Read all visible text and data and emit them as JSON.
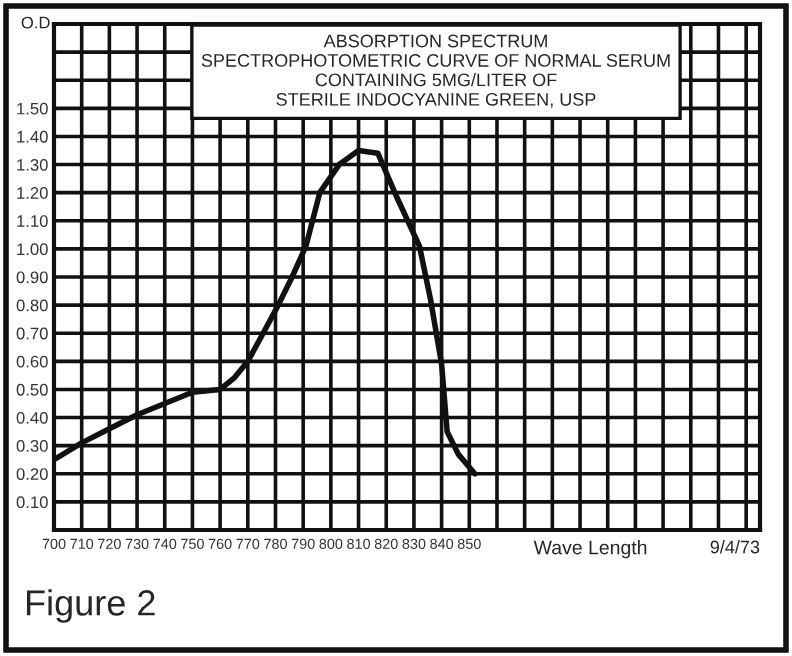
{
  "chart_data": {
    "type": "line",
    "title": "ABSORPTION SPECTRUM\nSPECTROPHOTOMETRIC CURVE OF NORMAL SERUM\nCONTAINING 5MG/LITER OF\nSTERILE INDOCYANINE GREEN, USP",
    "xlabel": "Wave Length",
    "ylabel": "O.D",
    "annotations": [
      "9/4/73",
      "Figure 2"
    ],
    "series": [
      {
        "color": "#111111",
        "x": [
          700,
          710,
          720,
          730,
          740,
          750,
          760,
          765,
          770,
          775,
          781,
          786,
          791,
          796,
          803,
          810,
          817,
          824,
          832,
          836,
          840,
          842,
          846,
          852
        ],
        "values": [
          0.25,
          0.31,
          0.36,
          0.41,
          0.45,
          0.49,
          0.5,
          0.54,
          0.6,
          0.69,
          0.8,
          0.9,
          1.01,
          1.2,
          1.3,
          1.35,
          1.34,
          1.18,
          1.01,
          0.82,
          0.59,
          0.35,
          0.27,
          0.2
        ]
      }
    ],
    "xlim": [
      700,
      955
    ],
    "ylim": [
      0,
      1.8
    ],
    "xticks": [
      700,
      710,
      720,
      730,
      740,
      750,
      760,
      770,
      780,
      790,
      800,
      810,
      820,
      830,
      840,
      850,
      {
        "value": 860,
        "label": null
      },
      {
        "value": 870,
        "label": null
      },
      {
        "value": 880,
        "label": null
      },
      {
        "value": 890,
        "label": null
      },
      {
        "value": 900,
        "label": null
      },
      {
        "value": 910,
        "label": null
      },
      {
        "value": 920,
        "label": null
      },
      {
        "value": 930,
        "label": null
      },
      {
        "value": 940,
        "label": null
      },
      {
        "value": 950,
        "label": null
      }
    ],
    "yticks": [
      {
        "value": 0.1,
        "label": "0.10"
      },
      {
        "value": 0.2,
        "label": "0.20"
      },
      {
        "value": 0.3,
        "label": "0.30"
      },
      {
        "value": 0.4,
        "label": "0.40"
      },
      {
        "value": 0.5,
        "label": "0.50"
      },
      {
        "value": 0.6,
        "label": "0.60"
      },
      {
        "value": 0.7,
        "label": "0.70"
      },
      {
        "value": 0.8,
        "label": "0.80"
      },
      {
        "value": 0.9,
        "label": "0.90"
      },
      {
        "value": 1.0,
        "label": "1.00"
      },
      {
        "value": 1.1,
        "label": "1.10"
      },
      {
        "value": 1.2,
        "label": "1.20"
      },
      {
        "value": 1.3,
        "label": "1.30"
      },
      {
        "value": 1.4,
        "label": "1.40"
      },
      {
        "value": 1.5,
        "label": "1.50"
      },
      {
        "value": 1.6,
        "label": null
      },
      {
        "value": 1.7,
        "label": null
      }
    ],
    "grid": true,
    "marker": "none",
    "line_style": "solid"
  }
}
